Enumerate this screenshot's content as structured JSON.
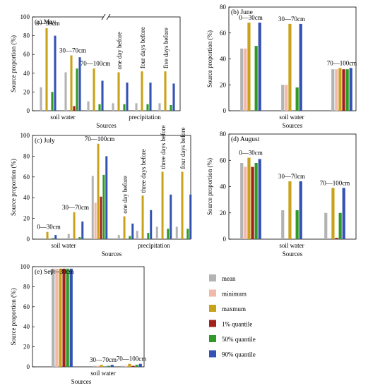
{
  "chart_data": [
    {
      "id": "may",
      "type": "bar",
      "title": "(a) May",
      "ylabel": "Source proportion (%)",
      "xlabel": "Sources",
      "ylim": [
        0,
        100
      ],
      "yticks": [
        0,
        20,
        40,
        60,
        80,
        100
      ],
      "axis_break": true,
      "group_labels": [
        {
          "text": "soil water",
          "x": 1.4,
          "type": "axis"
        },
        {
          "text": "precipitation",
          "x": 3.5,
          "type": "axis"
        }
      ],
      "categories": [
        "0—30cm",
        "30—70cm",
        "70—100cm",
        "one day before",
        "four days before",
        "five days before"
      ],
      "bar_labels": [
        {
          "text": "0—30cm",
          "type": "h"
        },
        {
          "text": "30—70cm",
          "type": "h"
        },
        {
          "text": "70—100cm",
          "type": "h"
        },
        {
          "text": "one day before",
          "type": "v"
        },
        {
          "text": "four days before",
          "type": "v"
        },
        {
          "text": "five days before",
          "type": "v"
        }
      ],
      "series": [
        {
          "name": "mean",
          "values": [
            25,
            41,
            10,
            8,
            8,
            8
          ]
        },
        {
          "name": "minimum",
          "values": [
            0,
            0,
            0,
            0,
            0,
            0
          ]
        },
        {
          "name": "maxmum",
          "values": [
            88,
            59,
            45,
            41,
            42,
            42
          ]
        },
        {
          "name": "1% quantile",
          "values": [
            0,
            5,
            0,
            0,
            0,
            0
          ]
        },
        {
          "name": "50% quantile",
          "values": [
            20,
            45,
            7,
            7,
            7,
            6
          ]
        },
        {
          "name": "90% quantile",
          "values": [
            80,
            57,
            32,
            30,
            30,
            29
          ]
        }
      ]
    },
    {
      "id": "june",
      "type": "bar",
      "title": "(b) June",
      "ylabel": "Source proportion (%)",
      "xlabel": "Sources",
      "ylim": [
        0,
        80
      ],
      "yticks": [
        0,
        20,
        40,
        60,
        80
      ],
      "group_labels": [
        {
          "text": "soil water",
          "x": 1.0,
          "type": "axis"
        }
      ],
      "categories": [
        "0—30cm",
        "30—70cm",
        "70—100cm"
      ],
      "bar_labels": [
        {
          "text": "0—30cm",
          "type": "h"
        },
        {
          "text": "30—70cm",
          "type": "h"
        },
        {
          "text": "70—100cm",
          "type": "h"
        }
      ],
      "series": [
        {
          "name": "mean",
          "values": [
            48,
            20,
            32
          ]
        },
        {
          "name": "minimum",
          "values": [
            48,
            20,
            32
          ]
        },
        {
          "name": "maxmum",
          "values": [
            68,
            67,
            33
          ]
        },
        {
          "name": "1% quantile",
          "values": [
            0,
            0,
            32
          ]
        },
        {
          "name": "50% quantile",
          "values": [
            50,
            18,
            32
          ]
        },
        {
          "name": "90% quantile",
          "values": [
            68,
            67,
            33
          ]
        }
      ]
    },
    {
      "id": "july",
      "type": "bar",
      "title": "(c) July",
      "ylabel": "Source proportion (%)",
      "xlabel": "Sources",
      "ylim": [
        0,
        100
      ],
      "yticks": [
        0,
        20,
        40,
        60,
        80,
        100
      ],
      "group_labels": [
        {
          "text": "soil water",
          "x": 1.0,
          "type": "axis"
        },
        {
          "text": "precipitation",
          "x": 4.5,
          "type": "axis"
        }
      ],
      "categories": [
        "0—30cm",
        "30—70cm",
        "70—100cm",
        "one day before",
        "three days before",
        "three days before",
        "four days before"
      ],
      "bar_labels": [
        {
          "text": "0—30cm",
          "type": "h"
        },
        {
          "text": "30—70cm",
          "type": "h"
        },
        {
          "text": "70—100cm",
          "type": "h"
        },
        {
          "text": "one day before",
          "type": "v"
        },
        {
          "text": "three days before",
          "type": "v"
        },
        {
          "text": "three days before",
          "type": "v"
        },
        {
          "text": "four days before",
          "type": "v"
        }
      ],
      "series": [
        {
          "name": "mean",
          "values": [
            1,
            5,
            61,
            4,
            8,
            12,
            12
          ]
        },
        {
          "name": "minimum",
          "values": [
            0,
            0,
            35,
            0,
            0,
            0,
            0
          ]
        },
        {
          "name": "maxmum",
          "values": [
            7,
            26,
            92,
            22,
            42,
            65,
            65
          ]
        },
        {
          "name": "1% quantile",
          "values": [
            0,
            0,
            41,
            0,
            0,
            0,
            0
          ]
        },
        {
          "name": "50% quantile",
          "values": [
            1,
            2,
            62,
            3,
            6,
            10,
            10
          ]
        },
        {
          "name": "90% quantile",
          "values": [
            4,
            17,
            80,
            15,
            28,
            43,
            43
          ]
        }
      ]
    },
    {
      "id": "august",
      "type": "bar",
      "title": "(d) August",
      "ylabel": "Source proportion (%)",
      "xlabel": "Sources",
      "ylim": [
        0,
        80
      ],
      "yticks": [
        0,
        20,
        40,
        60,
        80
      ],
      "group_labels": [
        {
          "text": "soil water",
          "x": 1.0,
          "type": "axis"
        }
      ],
      "categories": [
        "0—30cm",
        "30—70cm",
        "70—100cm"
      ],
      "bar_labels": [
        {
          "text": "0—30cm",
          "type": "h"
        },
        {
          "text": "30—70cm",
          "type": "h"
        },
        {
          "text": "70—100cm",
          "type": "h"
        }
      ],
      "series": [
        {
          "name": "mean",
          "values": [
            58,
            22,
            20
          ]
        },
        {
          "name": "minimum",
          "values": [
            55,
            0,
            0
          ]
        },
        {
          "name": "maxmum",
          "values": [
            62,
            44,
            39
          ]
        },
        {
          "name": "1% quantile",
          "values": [
            55,
            0,
            1
          ]
        },
        {
          "name": "50% quantile",
          "values": [
            58,
            22,
            20
          ]
        },
        {
          "name": "90% quantile",
          "values": [
            61,
            44,
            39
          ]
        }
      ]
    },
    {
      "id": "september",
      "type": "bar",
      "title": "(e) September",
      "ylabel": "Source proportion (%)",
      "xlabel": "Sources",
      "ylim": [
        0,
        100
      ],
      "yticks": [
        0,
        20,
        40,
        60,
        80,
        100
      ],
      "group_labels": [
        {
          "text": "soil water",
          "x": 1.0,
          "type": "axis"
        }
      ],
      "categories": [
        "0—30cm",
        "30—70cm",
        "70—100cm"
      ],
      "bar_labels": [
        {
          "text": "",
          "type": "h"
        },
        {
          "text": "30—70cm",
          "type": "h"
        },
        {
          "text": "70—100cm",
          "type": "h"
        }
      ],
      "series": [
        {
          "name": "mean",
          "values": [
            98,
            1,
            1
          ]
        },
        {
          "name": "minimum",
          "values": [
            98,
            1,
            1
          ]
        },
        {
          "name": "maxmum",
          "values": [
            98,
            2,
            3
          ]
        },
        {
          "name": "1% quantile",
          "values": [
            98,
            0,
            1
          ]
        },
        {
          "name": "50% quantile",
          "values": [
            98,
            1,
            2
          ]
        },
        {
          "name": "90% quantile",
          "values": [
            98,
            2,
            3
          ]
        }
      ],
      "extra_labels": [
        {
          "text": "0—30cm"
        }
      ]
    }
  ],
  "legend": {
    "placement": "right of panel (e)",
    "items": [
      {
        "name": "mean",
        "color": "#b3b3b3"
      },
      {
        "name": "minimum",
        "color": "#f2b8a8"
      },
      {
        "name": "maxmum",
        "color": "#c9a21a"
      },
      {
        "name": "1% quantile",
        "color": "#a3201a"
      },
      {
        "name": "50% quantile",
        "color": "#2f9a25"
      },
      {
        "name": "90% quantile",
        "color": "#3452b4"
      }
    ]
  }
}
